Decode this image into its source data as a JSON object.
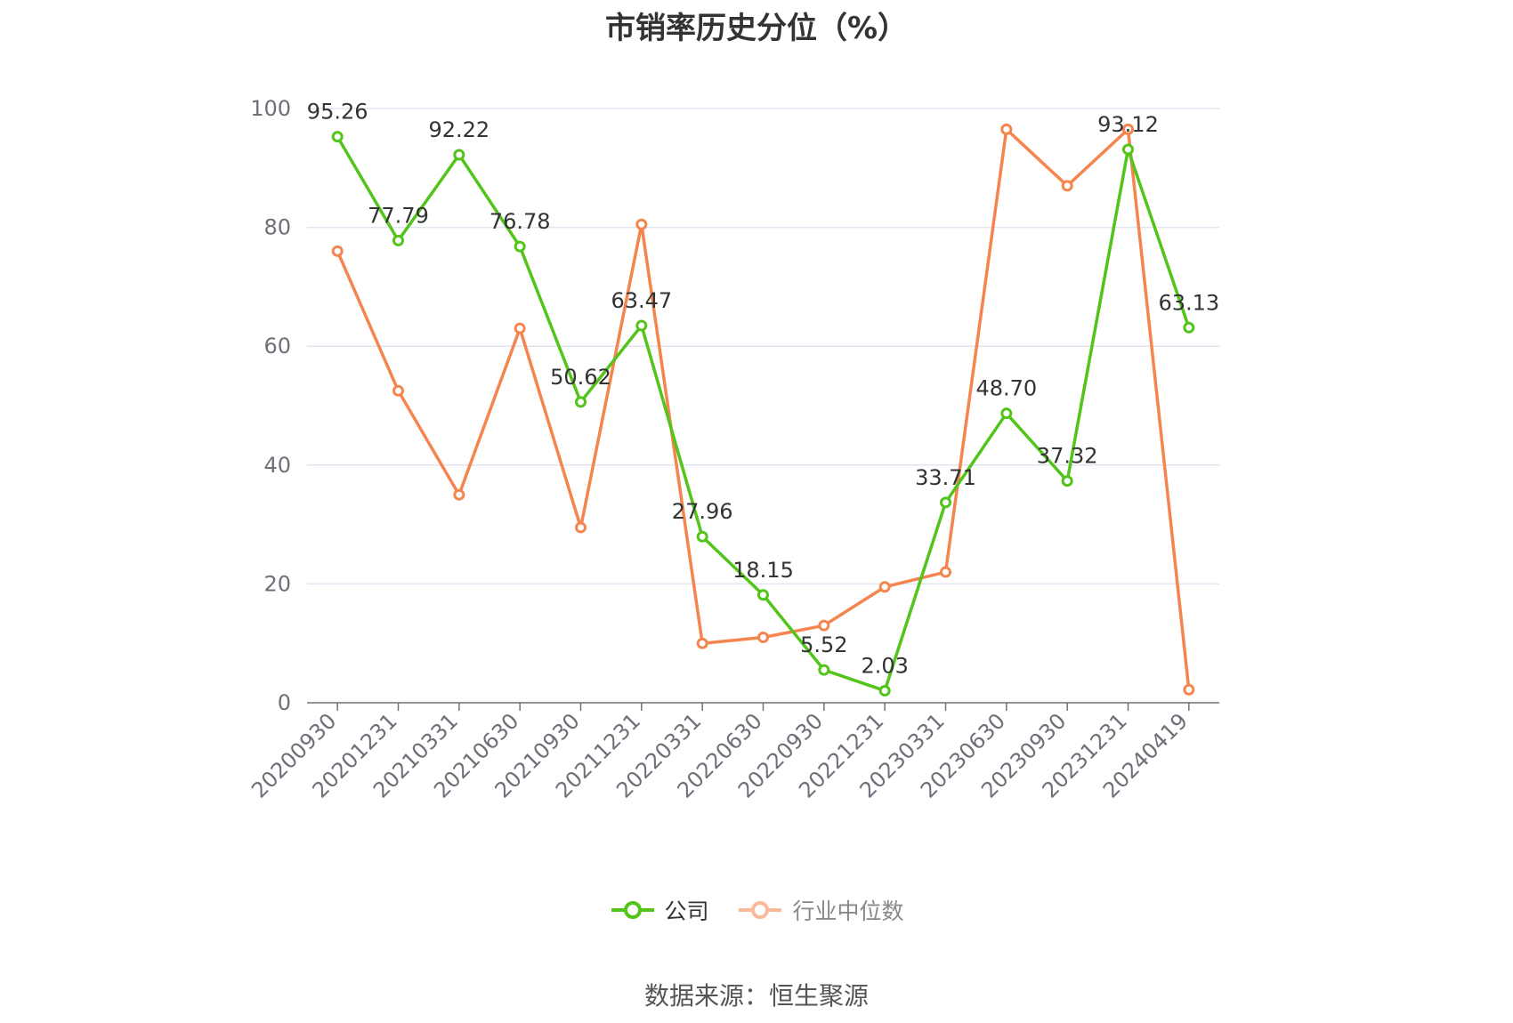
{
  "chart_data": {
    "type": "line",
    "title": "市销率历史分位（%）",
    "categories": [
      "20200930",
      "20201231",
      "20210331",
      "20210630",
      "20210930",
      "20211231",
      "20220331",
      "20220630",
      "20220930",
      "20221231",
      "20230331",
      "20230630",
      "20230930",
      "20231231",
      "20240419"
    ],
    "series": [
      {
        "name": "公司",
        "color": "#52c41a",
        "values": [
          95.26,
          77.79,
          92.22,
          76.78,
          50.62,
          63.47,
          27.96,
          18.15,
          5.52,
          2.03,
          33.71,
          48.7,
          37.32,
          93.12,
          63.13
        ],
        "labels": [
          "95.26",
          "77.79",
          "92.22",
          "76.78",
          "50.62",
          "63.47",
          "27.96",
          "18.15",
          "5.52",
          "2.03",
          "33.71",
          "48.70",
          "37.32",
          "93.12",
          "63.13"
        ]
      },
      {
        "name": "行业中位数",
        "color": "#f5854f",
        "values": [
          76,
          52.5,
          35,
          63,
          29.5,
          80.5,
          10,
          11,
          13,
          19.5,
          22,
          96.5,
          87,
          96.5,
          2.2
        ]
      }
    ],
    "ylim": [
      0,
      100
    ],
    "yticks": [
      "0",
      "20",
      "40",
      "60",
      "80",
      "100"
    ],
    "grid": true,
    "legend_position": "bottom"
  },
  "source_note": "数据来源：恒生聚源"
}
